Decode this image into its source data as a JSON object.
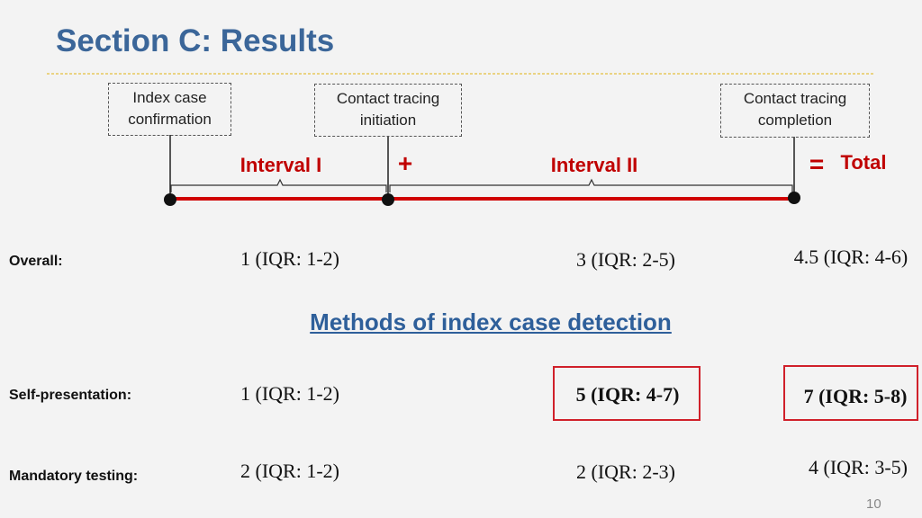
{
  "header": {
    "title": "Section C: Results"
  },
  "timeline": {
    "boxes": [
      {
        "lines": [
          "Index case",
          "confirmation"
        ]
      },
      {
        "lines": [
          "Contact tracing",
          "initiation"
        ]
      },
      {
        "lines": [
          "Contact tracing",
          "completion"
        ]
      }
    ],
    "interval_1": "Interval I",
    "plus": "+",
    "interval_2": "Interval II",
    "equals": "=",
    "total": "Total"
  },
  "overall": {
    "label": "Overall:",
    "values": [
      "1 (IQR: 1-2)",
      "3 (IQR: 2-5)",
      "4.5 (IQR: 4-6)"
    ]
  },
  "methods_heading": "Methods of index case detection",
  "methods": [
    {
      "label": "Self-presentation:",
      "values": [
        "1 (IQR: 1-2)",
        "5 (IQR: 4-7)",
        "7 (IQR: 5-8)"
      ]
    },
    {
      "label": "Mandatory testing:",
      "values": [
        "2 (IQR: 1-2)",
        "2 (IQR: 2-3)",
        "4 (IQR: 3-5)"
      ]
    }
  ],
  "footer": {
    "page_number": "10"
  }
}
